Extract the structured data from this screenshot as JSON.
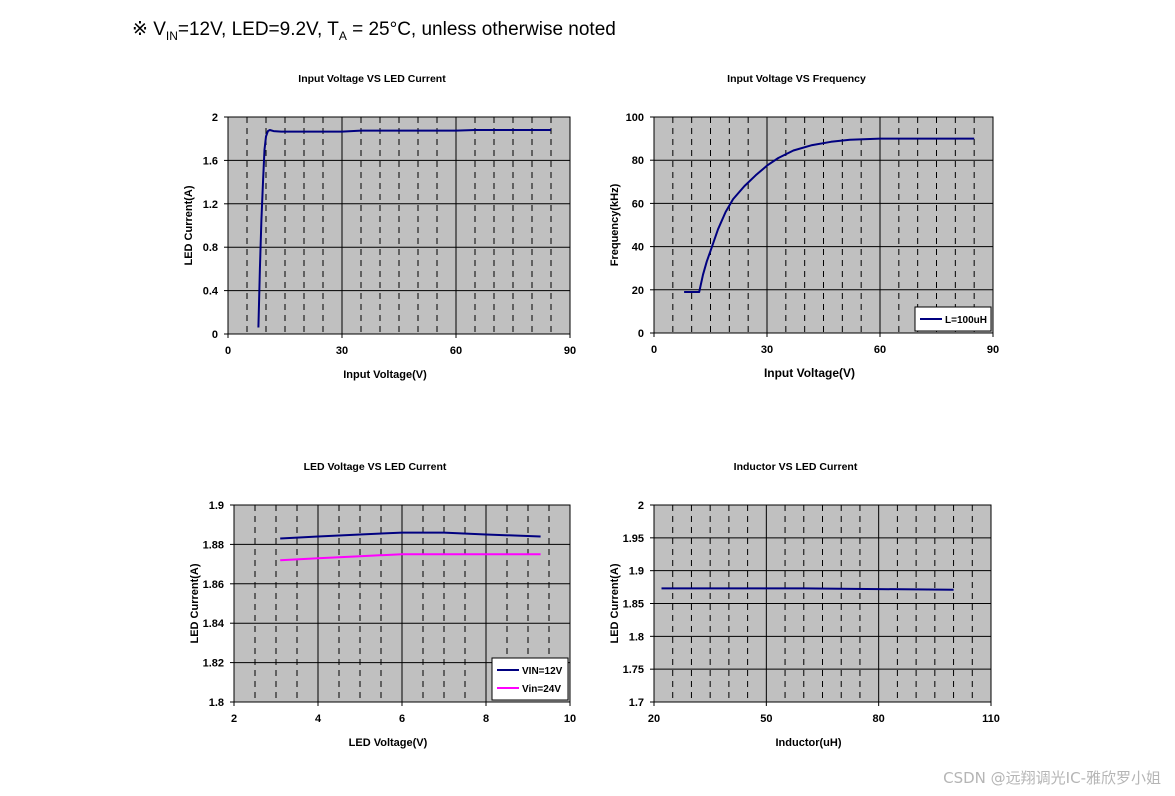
{
  "header": {
    "prefix": "※ V",
    "vin_sub": "IN",
    "mid": "=12V, LED=9.2V, T",
    "ta_sub": "A",
    "suffix": " = 25°C, unless otherwise noted"
  },
  "watermark": "CSDN @远翔调光IC-雅欣罗小姐",
  "colors": {
    "plot_bg": "#c0c0c0",
    "navy": "#000080",
    "magenta": "#ff00ff",
    "grid_solid": "#000000"
  },
  "chart_data": [
    {
      "type": "line",
      "title": "Input Voltage VS LED Current",
      "xlabel": "Input Voltage(V)",
      "ylabel": "LED Current(A)",
      "xlim": [
        0,
        90
      ],
      "ylim": [
        0,
        2
      ],
      "xticks": [
        0,
        30,
        60,
        90
      ],
      "xtick_labels": [
        "0",
        "30",
        "60",
        "90"
      ],
      "yticks": [
        0,
        0.4,
        0.8,
        1.2,
        1.6,
        2
      ],
      "ytick_labels": [
        "0",
        "0.4",
        "0.8",
        "1.2",
        "1.6",
        "2"
      ],
      "minor_x": 5,
      "legend": null,
      "series": [
        {
          "color": "#000080",
          "x": [
            8,
            8.4,
            8.8,
            9.2,
            9.6,
            10,
            10.5,
            11,
            12,
            14,
            20,
            30,
            35,
            45,
            60,
            65,
            75,
            85
          ],
          "y": [
            0.06,
            0.6,
            1.05,
            1.4,
            1.7,
            1.82,
            1.87,
            1.88,
            1.87,
            1.865,
            1.865,
            1.865,
            1.875,
            1.875,
            1.875,
            1.88,
            1.88,
            1.88
          ]
        }
      ]
    },
    {
      "type": "line",
      "title": "Input Voltage VS Frequency",
      "xlabel": "Input Voltage(V)",
      "ylabel": "Frequency(kHz)",
      "xlim": [
        0,
        90
      ],
      "ylim": [
        0,
        100
      ],
      "xticks": [
        0,
        30,
        60,
        90
      ],
      "xtick_labels": [
        "0",
        "30",
        "60",
        "90"
      ],
      "yticks": [
        0,
        20,
        40,
        60,
        80,
        100
      ],
      "ytick_labels": [
        "0",
        "20",
        "40",
        "60",
        "80",
        "100"
      ],
      "minor_x": 5,
      "legend": "bottom-right",
      "series": [
        {
          "name": "L=100uH",
          "color": "#000080",
          "x": [
            8,
            10,
            12,
            13,
            14,
            15,
            17,
            19,
            21,
            24,
            27,
            30,
            33,
            37,
            42,
            47,
            52,
            60,
            70,
            85
          ],
          "y": [
            19,
            19,
            19,
            27,
            33,
            38,
            48,
            56,
            62,
            68,
            73,
            77.5,
            81,
            84.5,
            87,
            88.5,
            89.5,
            90,
            90,
            90
          ]
        }
      ]
    },
    {
      "type": "line",
      "title": "LED Voltage VS LED Current",
      "xlabel": "LED Voltage(V)",
      "ylabel": "LED Current(A)",
      "xlim": [
        2,
        10
      ],
      "ylim": [
        1.8,
        1.9
      ],
      "xticks": [
        2,
        4,
        6,
        8,
        10
      ],
      "xtick_labels": [
        "2",
        "4",
        "6",
        "8",
        "10"
      ],
      "yticks": [
        1.8,
        1.82,
        1.84,
        1.86,
        1.88,
        1.9
      ],
      "ytick_labels": [
        "1.8",
        "1.82",
        "1.84",
        "1.86",
        "1.88",
        "1.9"
      ],
      "minor_x": 0.5,
      "legend": "bottom-right",
      "series": [
        {
          "name": "VIN=12V",
          "color": "#000080",
          "x": [
            3.1,
            4,
            5,
            6,
            7,
            8,
            9.3
          ],
          "y": [
            1.883,
            1.884,
            1.885,
            1.886,
            1.886,
            1.885,
            1.884
          ]
        },
        {
          "name": "Vin=24V",
          "color": "#ff00ff",
          "x": [
            3.1,
            4,
            5,
            6,
            7,
            8,
            9.3
          ],
          "y": [
            1.872,
            1.873,
            1.874,
            1.875,
            1.875,
            1.875,
            1.875
          ]
        }
      ]
    },
    {
      "type": "line",
      "title": "Inductor VS LED Current",
      "xlabel": "Inductor(uH)",
      "ylabel": "LED Current(A)",
      "xlim": [
        20,
        110
      ],
      "ylim": [
        1.7,
        2
      ],
      "xticks": [
        20,
        50,
        80,
        110
      ],
      "xtick_labels": [
        "20",
        "50",
        "80",
        "110"
      ],
      "yticks": [
        1.7,
        1.75,
        1.8,
        1.85,
        1.9,
        1.95,
        2
      ],
      "ytick_labels": [
        "1.7",
        "1.75",
        "1.8",
        "1.85",
        "1.9",
        "1.95",
        "2"
      ],
      "minor_x": 5,
      "legend": null,
      "series": [
        {
          "color": "#000080",
          "x": [
            22,
            40,
            60,
            80,
            100
          ],
          "y": [
            1.873,
            1.873,
            1.873,
            1.872,
            1.871
          ]
        }
      ]
    }
  ]
}
